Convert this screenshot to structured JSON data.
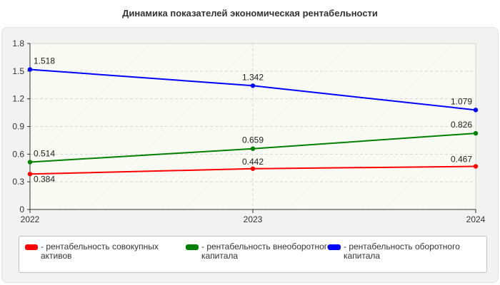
{
  "chart_data": {
    "type": "line",
    "title": "Динамика показателей экономическая рентабельности",
    "categories": [
      "2022",
      "2023",
      "2024"
    ],
    "ylim": [
      0,
      1.8
    ],
    "yticks": [
      "0",
      "0.3",
      "0.6",
      "0.9",
      "1.2",
      "1.5",
      "1.8"
    ],
    "grid": true,
    "legend_position": "bottom",
    "series": [
      {
        "name": "- рентабельность совокупных активов",
        "color": "#ff0000",
        "values": [
          0.384,
          0.442,
          0.467
        ],
        "labels": [
          "0.384",
          "0.442",
          "0.467"
        ]
      },
      {
        "name": "- рентабельность внеоборотного капитала",
        "color": "#008000",
        "values": [
          0.514,
          0.659,
          0.826
        ],
        "labels": [
          "0.514",
          "0.659",
          "0.826"
        ]
      },
      {
        "name": "- рентабельность оборотного капитала",
        "color": "#0000ff",
        "values": [
          1.518,
          1.342,
          1.079
        ],
        "labels": [
          "1.518",
          "1.342",
          "1.079"
        ]
      }
    ]
  }
}
